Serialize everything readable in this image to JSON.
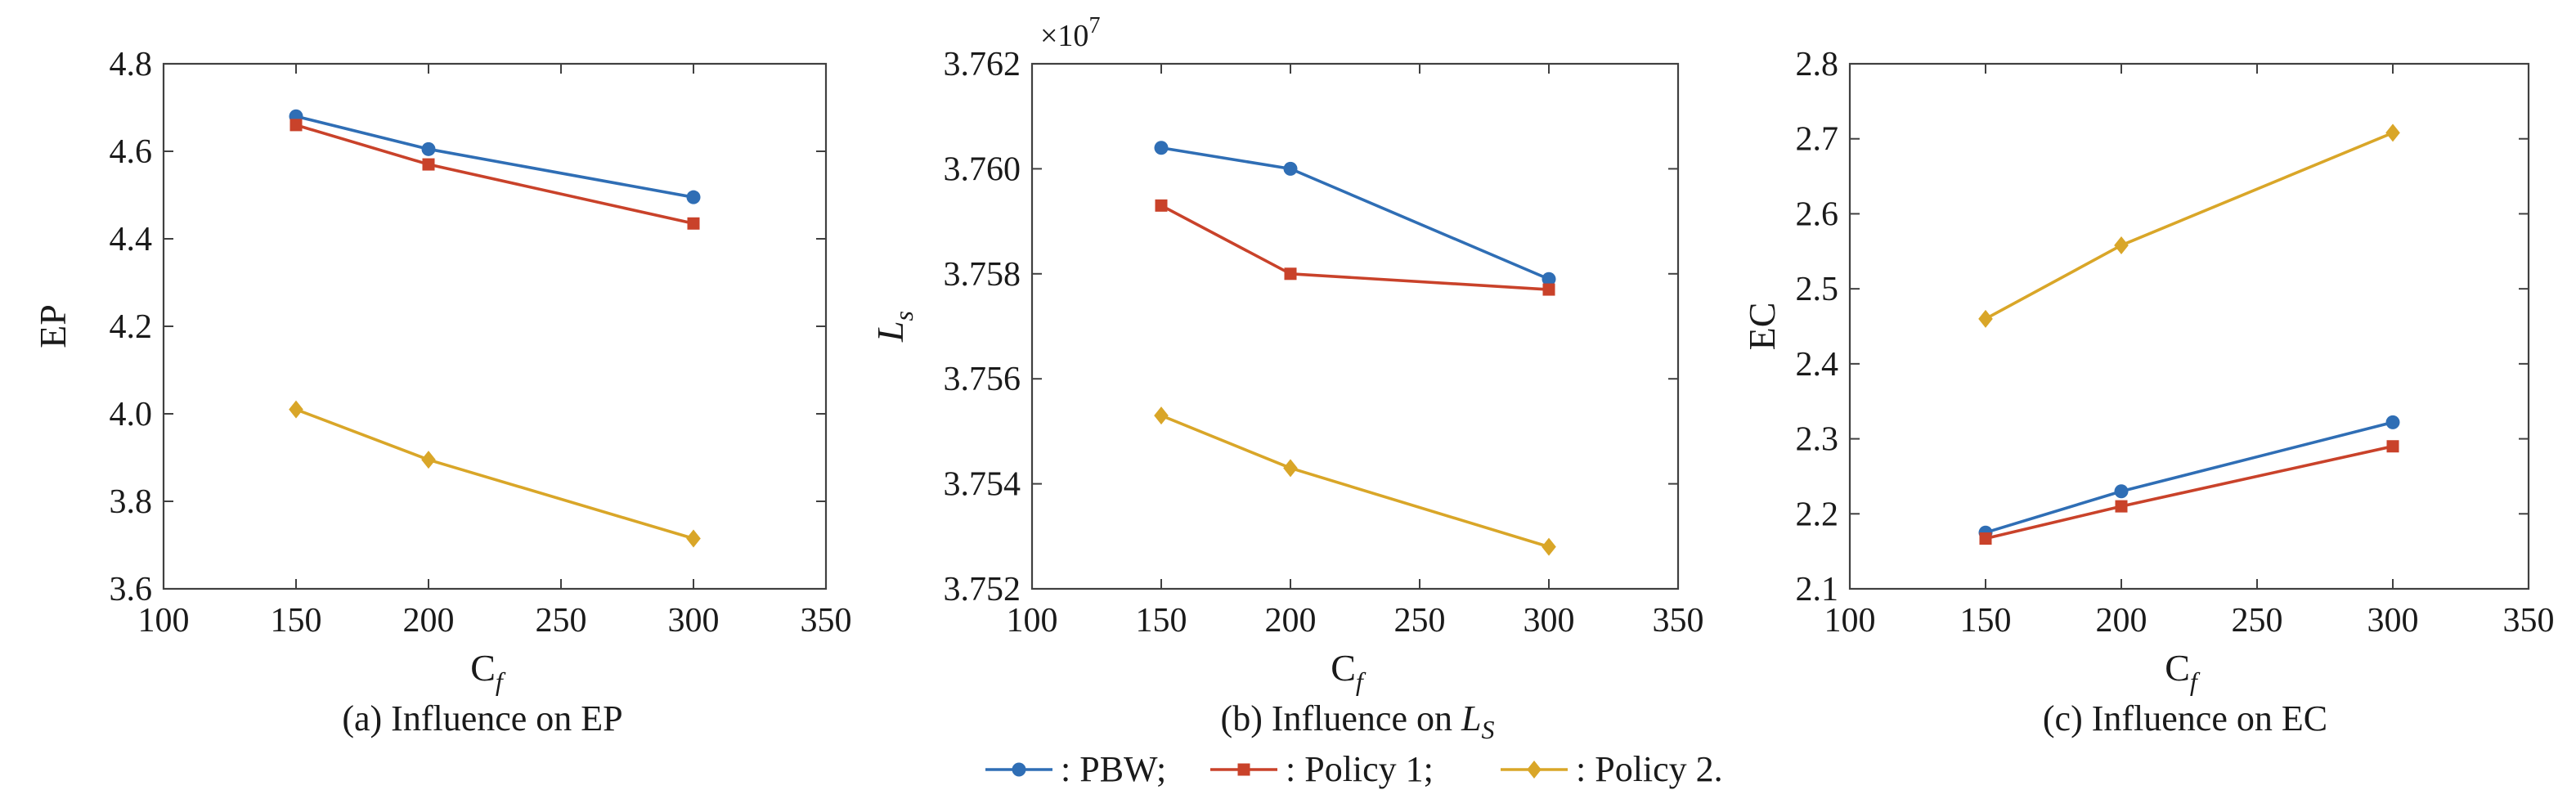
{
  "colors": {
    "pbw": "#2f6eb5",
    "policy1": "#c9422a",
    "policy2": "#d9a628",
    "axis": "#404040",
    "text": "#1a1a1a"
  },
  "legend": {
    "items": [
      {
        "series": "pbw",
        "marker": "circle",
        "label": ": PBW;"
      },
      {
        "series": "policy1",
        "marker": "square",
        "label": ": Policy 1;"
      },
      {
        "series": "policy2",
        "marker": "diamond",
        "label": ": Policy 2."
      }
    ]
  },
  "chart_data": [
    {
      "id": "ep",
      "type": "line",
      "title": "",
      "caption": "(a) Influence on EP",
      "xlabel": "C",
      "xlabel_sub": "f",
      "ylabel": "EP",
      "xlim": [
        100,
        350
      ],
      "ylim": [
        3.6,
        4.8
      ],
      "xticks": [
        100,
        150,
        200,
        250,
        300,
        350
      ],
      "yticks": [
        "3.6",
        "3.8",
        "4.0",
        "4.2",
        "4.4",
        "4.6",
        "4.8"
      ],
      "exponent": "",
      "x": [
        150,
        200,
        300
      ],
      "series": [
        {
          "key": "pbw",
          "name": "PBW",
          "marker": "circle",
          "values": [
            4.68,
            4.605,
            4.495
          ]
        },
        {
          "key": "policy1",
          "name": "Policy 1",
          "marker": "square",
          "values": [
            4.66,
            4.57,
            4.435
          ]
        },
        {
          "key": "policy2",
          "name": "Policy 2",
          "marker": "diamond",
          "values": [
            4.01,
            3.895,
            3.715
          ]
        }
      ]
    },
    {
      "id": "ls",
      "type": "line",
      "title": "",
      "caption": "(b) Influence on ",
      "caption_math": "L",
      "caption_sub": "S",
      "xlabel": "C",
      "xlabel_sub": "f",
      "ylabel": "L",
      "ylabel_sub": "s",
      "xlim": [
        100,
        350
      ],
      "ylim": [
        3.752,
        3.762
      ],
      "xticks": [
        100,
        150,
        200,
        250,
        300,
        350
      ],
      "yticks": [
        "3.752",
        "3.754",
        "3.756",
        "3.758",
        "3.760",
        "3.762"
      ],
      "exponent": "×10",
      "exponent_power": "7",
      "x": [
        150,
        200,
        300
      ],
      "series": [
        {
          "key": "pbw",
          "name": "PBW",
          "marker": "circle",
          "values": [
            3.7604,
            3.76,
            3.7579
          ]
        },
        {
          "key": "policy1",
          "name": "Policy 1",
          "marker": "square",
          "values": [
            3.7593,
            3.758,
            3.7577
          ]
        },
        {
          "key": "policy2",
          "name": "Policy 2",
          "marker": "diamond",
          "values": [
            3.7553,
            3.7543,
            3.7528
          ]
        }
      ]
    },
    {
      "id": "ec",
      "type": "line",
      "title": "",
      "caption": "(c) Influence on EC",
      "xlabel": "C",
      "xlabel_sub": "f",
      "ylabel": "EC",
      "xlim": [
        100,
        350
      ],
      "ylim": [
        2.1,
        2.8
      ],
      "xticks": [
        100,
        150,
        200,
        250,
        300,
        350
      ],
      "yticks": [
        "2.1",
        "2.2",
        "2.3",
        "2.4",
        "2.5",
        "2.6",
        "2.7",
        "2.8"
      ],
      "exponent": "",
      "x": [
        150,
        200,
        300
      ],
      "series": [
        {
          "key": "pbw",
          "name": "PBW",
          "marker": "circle",
          "values": [
            2.175,
            2.23,
            2.322
          ]
        },
        {
          "key": "policy1",
          "name": "Policy 1",
          "marker": "square",
          "values": [
            2.167,
            2.21,
            2.29
          ]
        },
        {
          "key": "policy2",
          "name": "Policy 2",
          "marker": "diamond",
          "values": [
            2.46,
            2.558,
            2.708
          ]
        }
      ]
    }
  ]
}
